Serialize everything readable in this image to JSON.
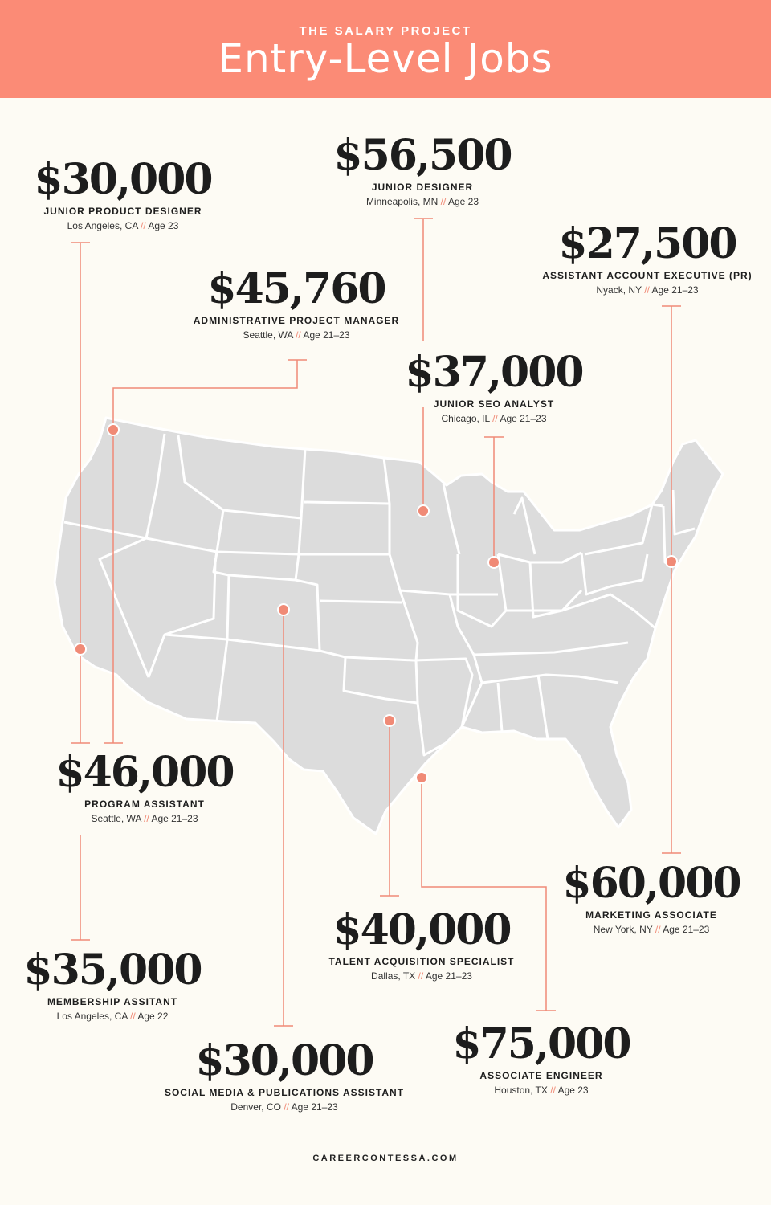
{
  "header": {
    "kicker": "THE SALARY PROJECT",
    "title": "Entry-Level Jobs"
  },
  "colors": {
    "header": "#fb8b76",
    "background": "#fdfbf4",
    "map_land": "#dcdcdc",
    "accent": "#f08a76"
  },
  "separator": "//",
  "jobs": [
    {
      "salary": "$30,000",
      "role": "JUNIOR PRODUCT DESIGNER",
      "city": "Los Angeles, CA",
      "age": "Age 23"
    },
    {
      "salary": "$56,500",
      "role": "JUNIOR DESIGNER",
      "city": "Minneapolis, MN",
      "age": "Age 23"
    },
    {
      "salary": "$27,500",
      "role": "ASSISTANT ACCOUNT EXECUTIVE (PR)",
      "city": "Nyack, NY",
      "age": "Age 21–23"
    },
    {
      "salary": "$45,760",
      "role": "ADMINISTRATIVE PROJECT MANAGER",
      "city": "Seattle, WA",
      "age": "Age 21–23"
    },
    {
      "salary": "$37,000",
      "role": "JUNIOR SEO ANALYST",
      "city": "Chicago, IL",
      "age": "Age 21–23"
    },
    {
      "salary": "$46,000",
      "role": "PROGRAM ASSISTANT",
      "city": "Seattle, WA",
      "age": "Age 21–23"
    },
    {
      "salary": "$60,000",
      "role": "MARKETING ASSOCIATE",
      "city": "New York, NY",
      "age": "Age 21–23"
    },
    {
      "salary": "$40,000",
      "role": "TALENT ACQUISITION SPECIALIST",
      "city": "Dallas, TX",
      "age": "Age 21–23"
    },
    {
      "salary": "$35,000",
      "role": "MEMBERSHIP ASSITANT",
      "city": "Los Angeles, CA",
      "age": "Age 22"
    },
    {
      "salary": "$30,000",
      "role": "SOCIAL MEDIA & PUBLICATIONS ASSISTANT",
      "city": "Denver, CO",
      "age": "Age 21–23"
    },
    {
      "salary": "$75,000",
      "role": "ASSOCIATE ENGINEER",
      "city": "Houston, TX",
      "age": "Age 23"
    }
  ],
  "footer": "CAREERCONTESSA.COM"
}
